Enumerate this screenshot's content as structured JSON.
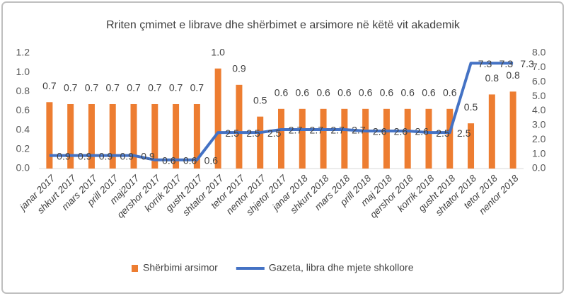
{
  "chart_data": {
    "type": "bar",
    "title": "Rriten çmimet e librave dhe shërbimet e arsimore në këtë vit akademik",
    "categories": [
      "janar 2017",
      "shkurt 2017",
      "mars 2017",
      "prill 2017",
      "maj2017",
      "qershor 2017",
      "korrik 2017",
      "gusht 2017",
      "shtator 2017",
      "tetor 2017",
      "nentor 2017",
      "shjetor 2017",
      "janar 2018",
      "shkurt 2018",
      "mars 2018",
      "prill 2018",
      "maj 2018",
      "qershor 2018",
      "korrik 2018",
      "gusht 2018",
      "shtator 2018",
      "tetor 2018",
      "nentor 2018"
    ],
    "series": [
      {
        "name": "Shërbimi arsimor",
        "type": "bar",
        "color": "#ed7d31",
        "values": [
          0.69,
          0.67,
          0.67,
          0.67,
          0.67,
          0.67,
          0.67,
          0.67,
          1.04,
          0.87,
          0.54,
          0.62,
          0.62,
          0.62,
          0.62,
          0.62,
          0.62,
          0.62,
          0.62,
          0.62,
          0.47,
          0.77,
          0.8
        ],
        "value_labels": [
          "0.7",
          "0.7",
          "0.7",
          "0.7",
          "0.7",
          "0.7",
          "0.7",
          "0.7",
          "1.0",
          "0.9",
          "0.5",
          "0.6",
          "0.6",
          "0.6",
          "0.6",
          "0.6",
          "0.6",
          "0.6",
          "0.6",
          "0.6",
          "0.5",
          "0.8",
          "0.8"
        ]
      },
      {
        "name": "Gazeta, libra dhe mjete shkollore",
        "type": "line",
        "axis": "y2",
        "color": "#4472c4",
        "values": [
          0.9,
          0.9,
          0.9,
          0.9,
          0.9,
          0.6,
          0.6,
          0.6,
          2.5,
          2.5,
          2.5,
          2.7,
          2.7,
          2.7,
          2.7,
          2.6,
          2.6,
          2.6,
          2.5,
          2.5,
          7.3,
          7.3,
          7.3
        ]
      }
    ],
    "ylim": [
      0,
      1.2
    ],
    "yticks": [
      {
        "value": 0,
        "label": "0.0"
      },
      0.2,
      0.4,
      0.6,
      0.8,
      {
        "value": 1,
        "label": "1.0"
      },
      1.2
    ],
    "y2lim": [
      0,
      8
    ],
    "y2ticks": [
      {
        "value": 0,
        "label": "0.0"
      },
      {
        "value": 1,
        "label": "1.0"
      },
      {
        "value": 2,
        "label": "2.0"
      },
      {
        "value": 3,
        "label": "3.0"
      },
      {
        "value": 4,
        "label": "4.0"
      },
      {
        "value": 5,
        "label": "5.0"
      },
      {
        "value": 6,
        "label": "6.0"
      },
      {
        "value": 7,
        "label": "7.0"
      },
      {
        "value": 8,
        "label": "8.0"
      }
    ],
    "grid": false,
    "legend": "bottom"
  }
}
